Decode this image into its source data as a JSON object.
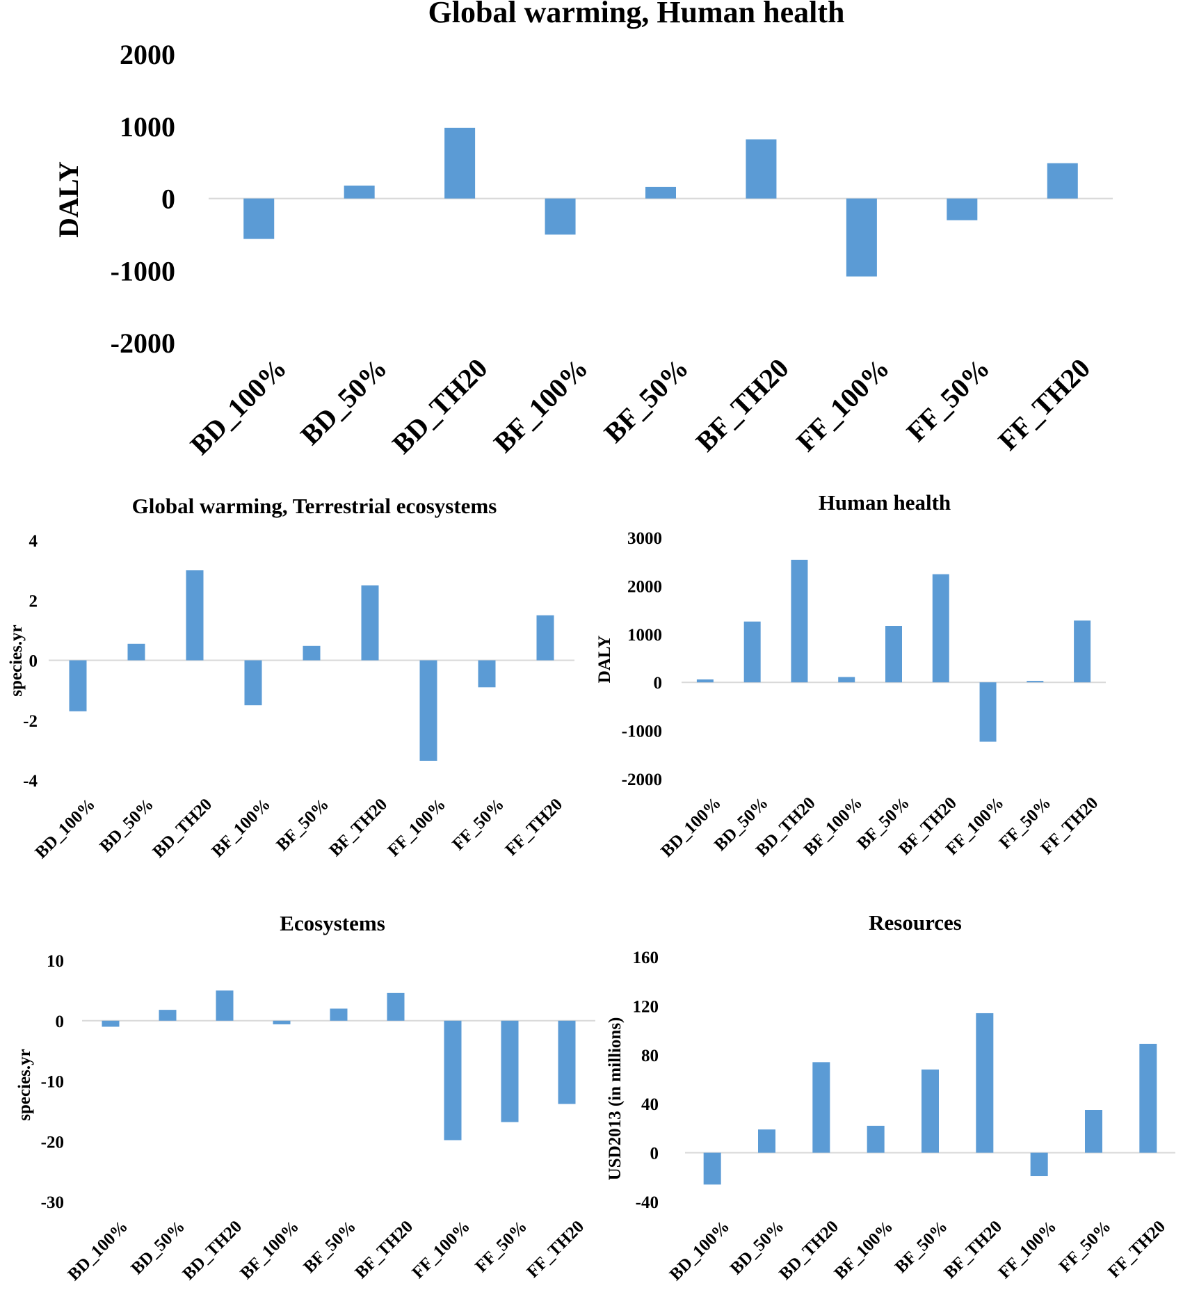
{
  "figure": {
    "background": "#ffffff",
    "bar_color": "#5b9bd5",
    "axis_color": "#d9d9d9"
  },
  "chart_data": [
    {
      "type": "bar",
      "title": "Global warming, Human health",
      "xlabel": "",
      "ylabel": "DALY",
      "categories": [
        "BD_100%",
        "BD_50%",
        "BD_TH20",
        "BF_100%",
        "BF_50%",
        "BF_TH20",
        "FF_100%",
        "FF_50%",
        "FF_TH20"
      ],
      "values": [
        -560,
        180,
        980,
        -500,
        160,
        820,
        -1080,
        -300,
        490
      ],
      "ylim": [
        -2000,
        2000
      ],
      "yticks": [
        2000,
        1000,
        0,
        -1000,
        -2000
      ],
      "ytick_labels": [
        "2000",
        "1000",
        "0",
        "-1000",
        "-2000"
      ],
      "grid": false,
      "legend": "none"
    },
    {
      "type": "bar",
      "title": "Global warming, Terrestrial ecosystems",
      "xlabel": "",
      "ylabel": "species.yr",
      "categories": [
        "BD_100%",
        "BD_50%",
        "BD_TH20",
        "BF_100%",
        "BF_50%",
        "BF_TH20",
        "FF_100%",
        "FF_50%",
        "FF_TH20"
      ],
      "values": [
        -1.7,
        0.55,
        3.0,
        -1.5,
        0.48,
        2.5,
        -3.35,
        -0.9,
        1.5
      ],
      "ylim": [
        -4,
        4
      ],
      "yticks": [
        4,
        2,
        0,
        -2,
        -4
      ],
      "ytick_labels": [
        "4",
        "2",
        "0",
        "-2",
        "-4"
      ],
      "grid": false,
      "legend": "none"
    },
    {
      "type": "bar",
      "title": "Human health",
      "xlabel": "",
      "ylabel": "DALY",
      "categories": [
        "BD_100%",
        "BD_50%",
        "BD_TH20",
        "BF_100%",
        "BF_50%",
        "BF_TH20",
        "FF_100%",
        "FF_50%",
        "FF_TH20"
      ],
      "values": [
        60,
        1260,
        2540,
        110,
        1170,
        2240,
        -1230,
        30,
        1280
      ],
      "ylim": [
        -2000,
        3000
      ],
      "yticks": [
        3000,
        2000,
        1000,
        0,
        -1000,
        -2000
      ],
      "ytick_labels": [
        "3000",
        "2000",
        "1000",
        "0",
        "-1000",
        "-2000"
      ],
      "grid": false,
      "legend": "none"
    },
    {
      "type": "bar",
      "title": "Ecosystems",
      "xlabel": "",
      "ylabel": "species.yr",
      "categories": [
        "BD_100%",
        "BD_50%",
        "BD_TH20",
        "BF_100%",
        "BF_50%",
        "BF_TH20",
        "FF_100%",
        "FF_50%",
        "FF_TH20"
      ],
      "values": [
        -1.0,
        1.8,
        5.0,
        -0.6,
        2.0,
        4.6,
        -19.8,
        -16.8,
        -13.8
      ],
      "ylim": [
        -30,
        10
      ],
      "yticks": [
        10,
        0,
        -10,
        -20,
        -30
      ],
      "ytick_labels": [
        "10",
        "0",
        "-10",
        "-20",
        "-30"
      ],
      "grid": false,
      "legend": "none"
    },
    {
      "type": "bar",
      "title": "Resources",
      "xlabel": "",
      "ylabel": "USD2013 (in millions)",
      "categories": [
        "BD_100%",
        "BD_50%",
        "BD_TH20",
        "BF_100%",
        "BF_50%",
        "BF_TH20",
        "FF_100%",
        "FF_50%",
        "FF_TH20"
      ],
      "values": [
        -26,
        19,
        74,
        22,
        68,
        114,
        -19,
        35,
        89
      ],
      "ylim": [
        -40,
        160
      ],
      "yticks": [
        160,
        120,
        80,
        40,
        0,
        -40
      ],
      "ytick_labels": [
        "160",
        "120",
        "80",
        "40",
        "0",
        "-40"
      ],
      "grid": false,
      "legend": "none"
    }
  ]
}
